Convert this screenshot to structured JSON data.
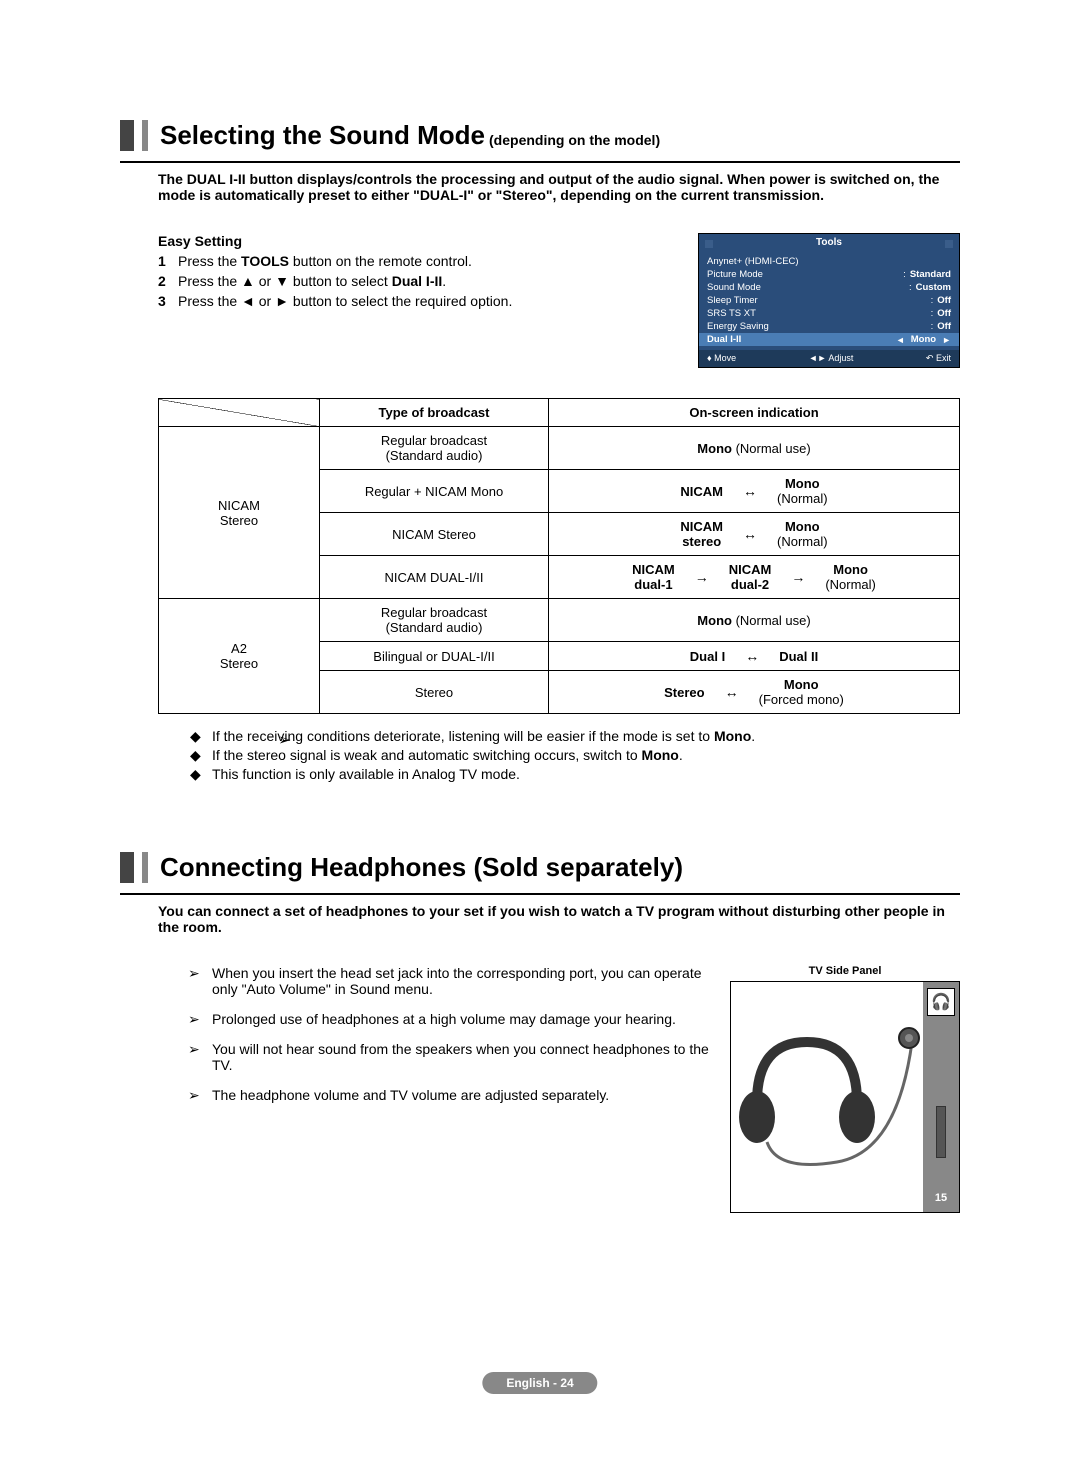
{
  "colors": {
    "tools_bg": "#2a4d7a",
    "tools_highlight": "#4a7db5",
    "tools_footer_bg": "#1e3a5a",
    "side_strip": "#888888"
  },
  "section1": {
    "title": "Selecting the Sound Mode",
    "subtitle": "(depending on the model)",
    "intro": "The DUAL I-II button displays/controls the processing and output of the audio signal. When power is switched on, the mode is automatically preset to either \"DUAL-I\" or \"Stereo\", depending on the current transmission.",
    "easy_setting_label": "Easy Setting",
    "steps": [
      "Press the TOOLS button on the remote control.",
      "Press the ▲ or ▼ button to select Dual I-II.",
      "Press the ◄ or ► button to select the required option."
    ],
    "step1_html": "Press the <b>TOOLS</b> button on the remote control.",
    "step2_html": "Press the ▲ or ▼ button to select <b>Dual I-II</b>.",
    "step3_html": "Press the ◄ or ► button to select the required option."
  },
  "tools_menu": {
    "title": "Tools",
    "rows": [
      {
        "label": "Anynet+ (HDMI-CEC)",
        "value": ""
      },
      {
        "label": "Picture Mode",
        "value": "Standard"
      },
      {
        "label": "Sound Mode",
        "value": "Custom"
      },
      {
        "label": "Sleep Timer",
        "value": "Off"
      },
      {
        "label": "SRS TS XT",
        "value": "Off"
      },
      {
        "label": "Energy Saving",
        "value": "Off"
      }
    ],
    "highlight": {
      "label": "Dual I-II",
      "value": "Mono"
    },
    "footer": {
      "move": "Move",
      "adjust": "Adjust",
      "exit": "Exit"
    }
  },
  "table": {
    "headers": {
      "type": "Type of broadcast",
      "indication": "On-screen indication"
    },
    "groups": [
      {
        "group_label": "NICAM\nStereo",
        "rows": [
          {
            "type": "Regular broadcast\n(Standard audio)",
            "ind_html": "<b>Mono</b> (Normal use)"
          },
          {
            "type": "Regular + NICAM Mono",
            "ind_items": [
              {
                "t": "<b>NICAM</b>"
              },
              {
                "arrow": "↔"
              },
              {
                "t": "<b>Mono</b><br>(Normal)"
              }
            ]
          },
          {
            "type": "NICAM Stereo",
            "ind_items": [
              {
                "t": "<b>NICAM</b><br><b>stereo</b>"
              },
              {
                "arrow": "↔"
              },
              {
                "t": "<b>Mono</b><br>(Normal)"
              }
            ]
          },
          {
            "type": "NICAM DUAL-I/II",
            "ind_items": [
              {
                "t": "<b>NICAM</b><br><b>dual-1</b>"
              },
              {
                "arrow": "→"
              },
              {
                "t": "<b>NICAM</b><br><b>dual-2</b>"
              },
              {
                "arrow": "→"
              },
              {
                "t": "<b>Mono</b><br>(Normal)"
              }
            ]
          }
        ]
      },
      {
        "group_label": "A2\nStereo",
        "rows": [
          {
            "type": "Regular broadcast\n(Standard audio)",
            "ind_html": "<b>Mono</b> (Normal use)"
          },
          {
            "type": "Bilingual or DUAL-I/II",
            "ind_items": [
              {
                "t": "<b>Dual I</b>"
              },
              {
                "arrow": "↔"
              },
              {
                "t": "<b>Dual II</b>"
              }
            ]
          },
          {
            "type": "Stereo",
            "ind_items": [
              {
                "t": "<b>Stereo</b>"
              },
              {
                "arrow": "↔"
              },
              {
                "t": "<b>Mono</b><br>(Forced mono)"
              }
            ]
          }
        ]
      }
    ]
  },
  "bullets1": [
    "If the receiving conditions deteriorate, listening will be easier if the mode is set to Mono.",
    "If the stereo signal is weak and automatic switching occurs, switch to Mono.",
    "This function is only available in Analog TV mode."
  ],
  "bullet1_0_html": "If the receiving conditions deteriorate, listening will be easier if the mode is set to <b>Mono</b>.",
  "bullet1_1_html": "If the stereo signal is weak and automatic switching occurs, switch to <b>Mono</b>.",
  "bullet1_2_html": "This function is only available in Analog TV mode.",
  "section2": {
    "title": "Connecting Headphones (Sold separately)",
    "intro": "You can connect a set of headphones to your set if you wish to watch a TV program without disturbing other people in the room.",
    "panel_label": "TV Side Panel",
    "side_num": "15",
    "notes": [
      "When you insert the head set jack into the corresponding port, you can operate only \"Auto Volume\" in Sound menu.",
      "Prolonged use of headphones at a high volume may damage your hearing.",
      "You will not hear sound from the speakers when you connect headphones to the TV.",
      "The headphone volume and TV volume are adjusted separately."
    ]
  },
  "footer": "English - 24"
}
